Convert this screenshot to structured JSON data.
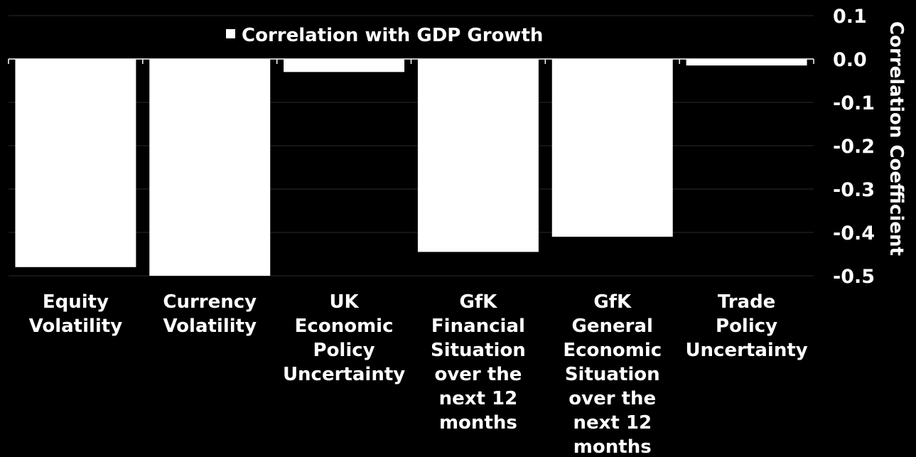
{
  "chart_data": {
    "type": "bar",
    "title": "",
    "legend": {
      "label": "Correlation with GDP Growth",
      "position": "top-center"
    },
    "categories": [
      [
        "Equity",
        "Volatility"
      ],
      [
        "Currency",
        "Volatility"
      ],
      [
        "UK",
        "Economic",
        "Policy",
        "Uncertainty"
      ],
      [
        "GfK",
        "Financial",
        "Situation",
        "over the",
        "next 12",
        "months"
      ],
      [
        "GfK",
        "General",
        "Economic",
        "Situation",
        "over the",
        "next 12",
        "months"
      ],
      [
        "Trade",
        "Policy",
        "Uncertainty"
      ]
    ],
    "series": [
      {
        "name": "Correlation with GDP Growth",
        "values": [
          -0.48,
          -0.5,
          -0.03,
          -0.445,
          -0.41,
          -0.015
        ],
        "color": "#ffffff"
      }
    ],
    "ylabel": "Correlation Coefficient",
    "yaxis_side": "right",
    "ylim": [
      -0.5,
      0.1
    ],
    "yticks": [
      0.1,
      0.0,
      -0.1,
      -0.2,
      -0.3,
      -0.4,
      -0.5
    ],
    "ytick_labels": [
      "0.1",
      "0.0",
      "-0.1",
      "-0.2",
      "-0.3",
      "-0.4",
      "-0.5"
    ],
    "grid": true,
    "colors": {
      "background": "#000000",
      "bar": "#ffffff",
      "grid": "#2b2b2b",
      "text": "#ffffff"
    }
  }
}
